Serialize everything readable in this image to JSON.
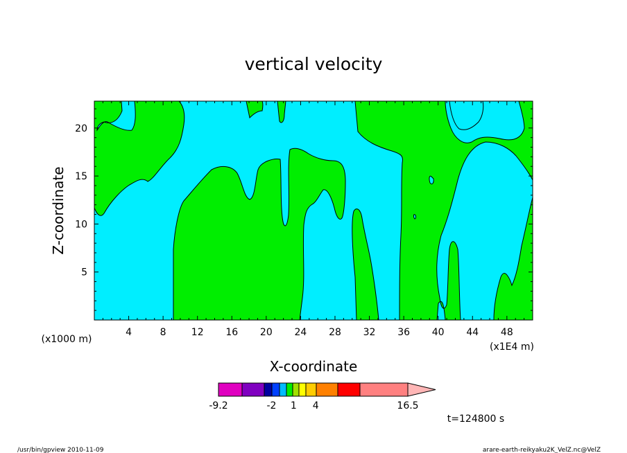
{
  "chart_data": {
    "type": "heatmap",
    "title": "vertical velocity",
    "xlabel": "X-coordinate",
    "ylabel": "Z-coordinate",
    "x_unit": "(x1E4 m)",
    "z_unit": "(x1000 m)",
    "x_ticks": [
      "4",
      "8",
      "12",
      "16",
      "20",
      "24",
      "28",
      "32",
      "36",
      "40",
      "44",
      "48"
    ],
    "x_tick_values": [
      4,
      8,
      12,
      16,
      20,
      24,
      28,
      32,
      36,
      40,
      44,
      48
    ],
    "xlim": [
      0,
      51
    ],
    "y_ticks": [
      "20",
      "15",
      "10",
      "5"
    ],
    "y_tick_values": [
      20,
      15,
      10,
      5
    ],
    "ylim": [
      0,
      22.8
    ],
    "colors": {
      "negative": "#00eeff",
      "positive": "#00ee00",
      "contour": "#000000"
    },
    "colorbar": {
      "labels": [
        "-9.2",
        "-2",
        "1",
        "4",
        "16.5"
      ],
      "label_values": [
        -9.2,
        -2,
        1,
        4,
        16.5
      ],
      "bins": [
        {
          "color": "#e000c0"
        },
        {
          "color": "#8000c0"
        },
        {
          "color": "#0000a0"
        },
        {
          "color": "#0040ff"
        },
        {
          "color": "#00bbff"
        },
        {
          "color": "#00ee00"
        },
        {
          "color": "#a0e000"
        },
        {
          "color": "#ffff00"
        },
        {
          "color": "#ffcc00"
        },
        {
          "color": "#ff8000"
        },
        {
          "color": "#ff0000"
        },
        {
          "color": "#ff8080"
        },
        {
          "color": "#ffb6b6"
        }
      ]
    },
    "time_label": "t=124800 s"
  },
  "footer": {
    "left": "/usr/bin/gpview  2010-11-09",
    "right": "arare-earth-reikyaku2K_VelZ.nc@VelZ"
  }
}
